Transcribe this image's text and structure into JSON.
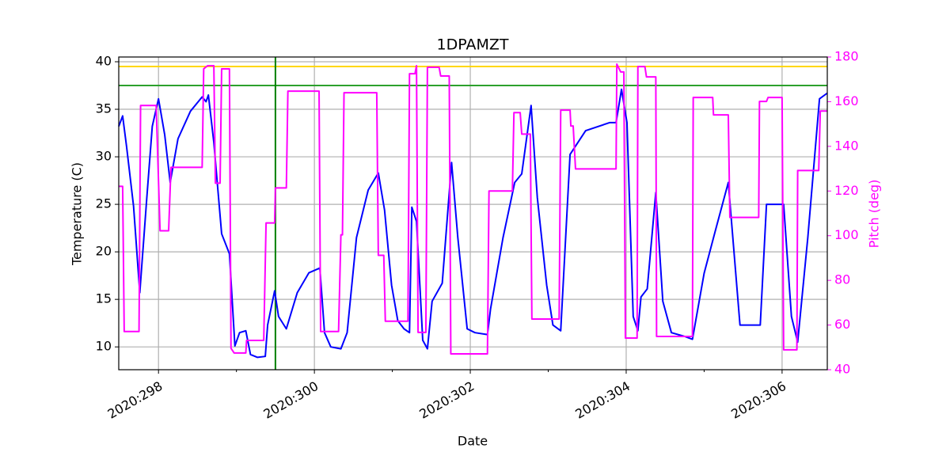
{
  "chart_data": {
    "type": "line",
    "title": "1DPAMZT",
    "xlabel": "Date",
    "ylabel": "Temperature (C)",
    "y2label": "Pitch (deg)",
    "xlim": [
      297.49,
      306.58
    ],
    "ylim": [
      7.6,
      40.5
    ],
    "y2lim": [
      40,
      180
    ],
    "xticks": [
      {
        "value": 298,
        "label": "2020:298"
      },
      {
        "value": 300,
        "label": "2020:300"
      },
      {
        "value": 302,
        "label": "2020:302"
      },
      {
        "value": 304,
        "label": "2020:304"
      },
      {
        "value": 306,
        "label": "2020:306"
      }
    ],
    "xminorticks": [
      299,
      301,
      303,
      305
    ],
    "yticks": [
      10,
      15,
      20,
      25,
      30,
      35,
      40
    ],
    "y2ticks": [
      40,
      60,
      80,
      100,
      120,
      140,
      160,
      180
    ],
    "grid": true,
    "y2color": "#ff00ff",
    "hlines": [
      {
        "value": 39.5,
        "color": "#ffd700"
      },
      {
        "value": 37.5,
        "color": "#2ca02c"
      }
    ],
    "vlines": [
      {
        "value": 299.5,
        "color": "#008000"
      }
    ],
    "series": [
      {
        "color": "#0000ff",
        "axis": "y",
        "x": [
          297.49,
          297.54,
          297.59,
          297.68,
          297.76,
          297.85,
          297.92,
          298.0,
          298.08,
          298.15,
          298.25,
          298.41,
          298.56,
          298.61,
          298.64,
          298.71,
          298.81,
          298.91,
          298.98,
          299.04,
          299.12,
          299.18,
          299.27,
          299.37,
          299.4,
          299.49,
          299.54,
          299.64,
          299.78,
          299.93,
          300.07,
          300.13,
          300.21,
          300.34,
          300.42,
          300.54,
          300.69,
          300.82,
          300.9,
          300.99,
          301.07,
          301.15,
          301.22,
          301.25,
          301.31,
          301.39,
          301.45,
          301.51,
          301.64,
          301.76,
          301.84,
          301.96,
          302.06,
          302.22,
          302.26,
          302.42,
          302.57,
          302.66,
          302.78,
          302.86,
          302.98,
          303.06,
          303.16,
          303.28,
          303.48,
          303.79,
          303.87,
          303.94,
          304.01,
          304.09,
          304.15,
          304.19,
          304.27,
          304.38,
          304.47,
          304.58,
          304.75,
          304.85,
          305.0,
          305.14,
          305.31,
          305.46,
          305.72,
          305.8,
          306.02,
          306.12,
          306.2,
          306.33,
          306.48,
          306.58
        ],
        "values": [
          33.2,
          34.3,
          31.1,
          24.8,
          15.7,
          25.7,
          33.2,
          36.1,
          32.3,
          27.3,
          31.9,
          34.8,
          36.3,
          35.8,
          36.5,
          31.5,
          21.9,
          19.8,
          10.1,
          11.5,
          11.7,
          9.2,
          8.9,
          9.0,
          12.3,
          15.9,
          13.2,
          11.9,
          15.7,
          17.8,
          18.3,
          11.5,
          10.0,
          9.8,
          11.5,
          21.5,
          26.5,
          28.3,
          24.4,
          16.5,
          12.75,
          11.9,
          11.5,
          24.7,
          23.2,
          10.7,
          9.8,
          14.8,
          16.7,
          29.4,
          21.5,
          11.9,
          11.5,
          11.3,
          14.0,
          21.5,
          27.3,
          28.2,
          35.4,
          25.7,
          16.5,
          12.3,
          11.7,
          30.25,
          32.75,
          33.6,
          33.6,
          37.1,
          33.6,
          13.2,
          11.7,
          15.25,
          16.1,
          26.25,
          14.8,
          11.5,
          11.1,
          10.8,
          17.75,
          22.1,
          27.3,
          12.3,
          12.3,
          25.0,
          25.0,
          13.2,
          10.5,
          21.5,
          36.1,
          36.7
        ]
      },
      {
        "color": "#ff00ff",
        "axis": "y2",
        "x": [
          297.49,
          297.54,
          297.56,
          297.75,
          297.77,
          297.97,
          298.02,
          298.13,
          298.16,
          298.56,
          298.58,
          298.63,
          298.71,
          298.73,
          298.79,
          298.81,
          298.91,
          298.93,
          298.97,
          299.12,
          299.13,
          299.35,
          299.38,
          299.49,
          299.5,
          299.64,
          299.66,
          300.06,
          300.08,
          300.31,
          300.34,
          300.36,
          300.38,
          300.8,
          300.82,
          300.89,
          300.91,
          301.2,
          301.22,
          301.29,
          301.31,
          301.33,
          301.43,
          301.45,
          301.6,
          301.62,
          301.73,
          301.75,
          302.22,
          302.24,
          302.54,
          302.56,
          302.64,
          302.66,
          302.77,
          302.79,
          303.14,
          303.16,
          303.28,
          303.29,
          303.32,
          303.35,
          303.87,
          303.88,
          303.93,
          303.97,
          303.99,
          304.14,
          304.15,
          304.24,
          304.26,
          304.38,
          304.39,
          304.85,
          304.86,
          305.11,
          305.12,
          305.31,
          305.33,
          305.7,
          305.71,
          305.8,
          305.82,
          306.0,
          306.02,
          306.19,
          306.2,
          306.47,
          306.49,
          306.58
        ],
        "values": [
          122.1,
          122.1,
          57.1,
          57.1,
          158.3,
          158.3,
          102.2,
          102.2,
          130.6,
          130.6,
          174.7,
          176.1,
          176.1,
          123.5,
          123.5,
          174.7,
          174.7,
          49.6,
          47.5,
          47.5,
          53.1,
          53.1,
          105.7,
          105.7,
          121.4,
          121.4,
          164.7,
          164.7,
          57.1,
          57.1,
          100.4,
          100.4,
          164.0,
          164.0,
          91.2,
          91.2,
          61.7,
          61.7,
          172.5,
          172.5,
          176.1,
          56.7,
          56.7,
          175.4,
          175.4,
          171.5,
          171.5,
          47.1,
          47.1,
          120,
          120,
          155.1,
          155.1,
          145.5,
          145.5,
          62.7,
          62.7,
          156.2,
          156.2,
          149.1,
          149.1,
          129.9,
          129.9,
          176.8,
          173.3,
          173.3,
          54.2,
          54.2,
          175.7,
          175.7,
          171.1,
          171.1,
          54.9,
          54.9,
          161.9,
          161.9,
          154.1,
          154.1,
          108.2,
          108.2,
          160.1,
          160.1,
          161.9,
          161.9,
          48.9,
          48.9,
          129.2,
          129.2,
          155.8,
          155.8
        ]
      }
    ]
  }
}
